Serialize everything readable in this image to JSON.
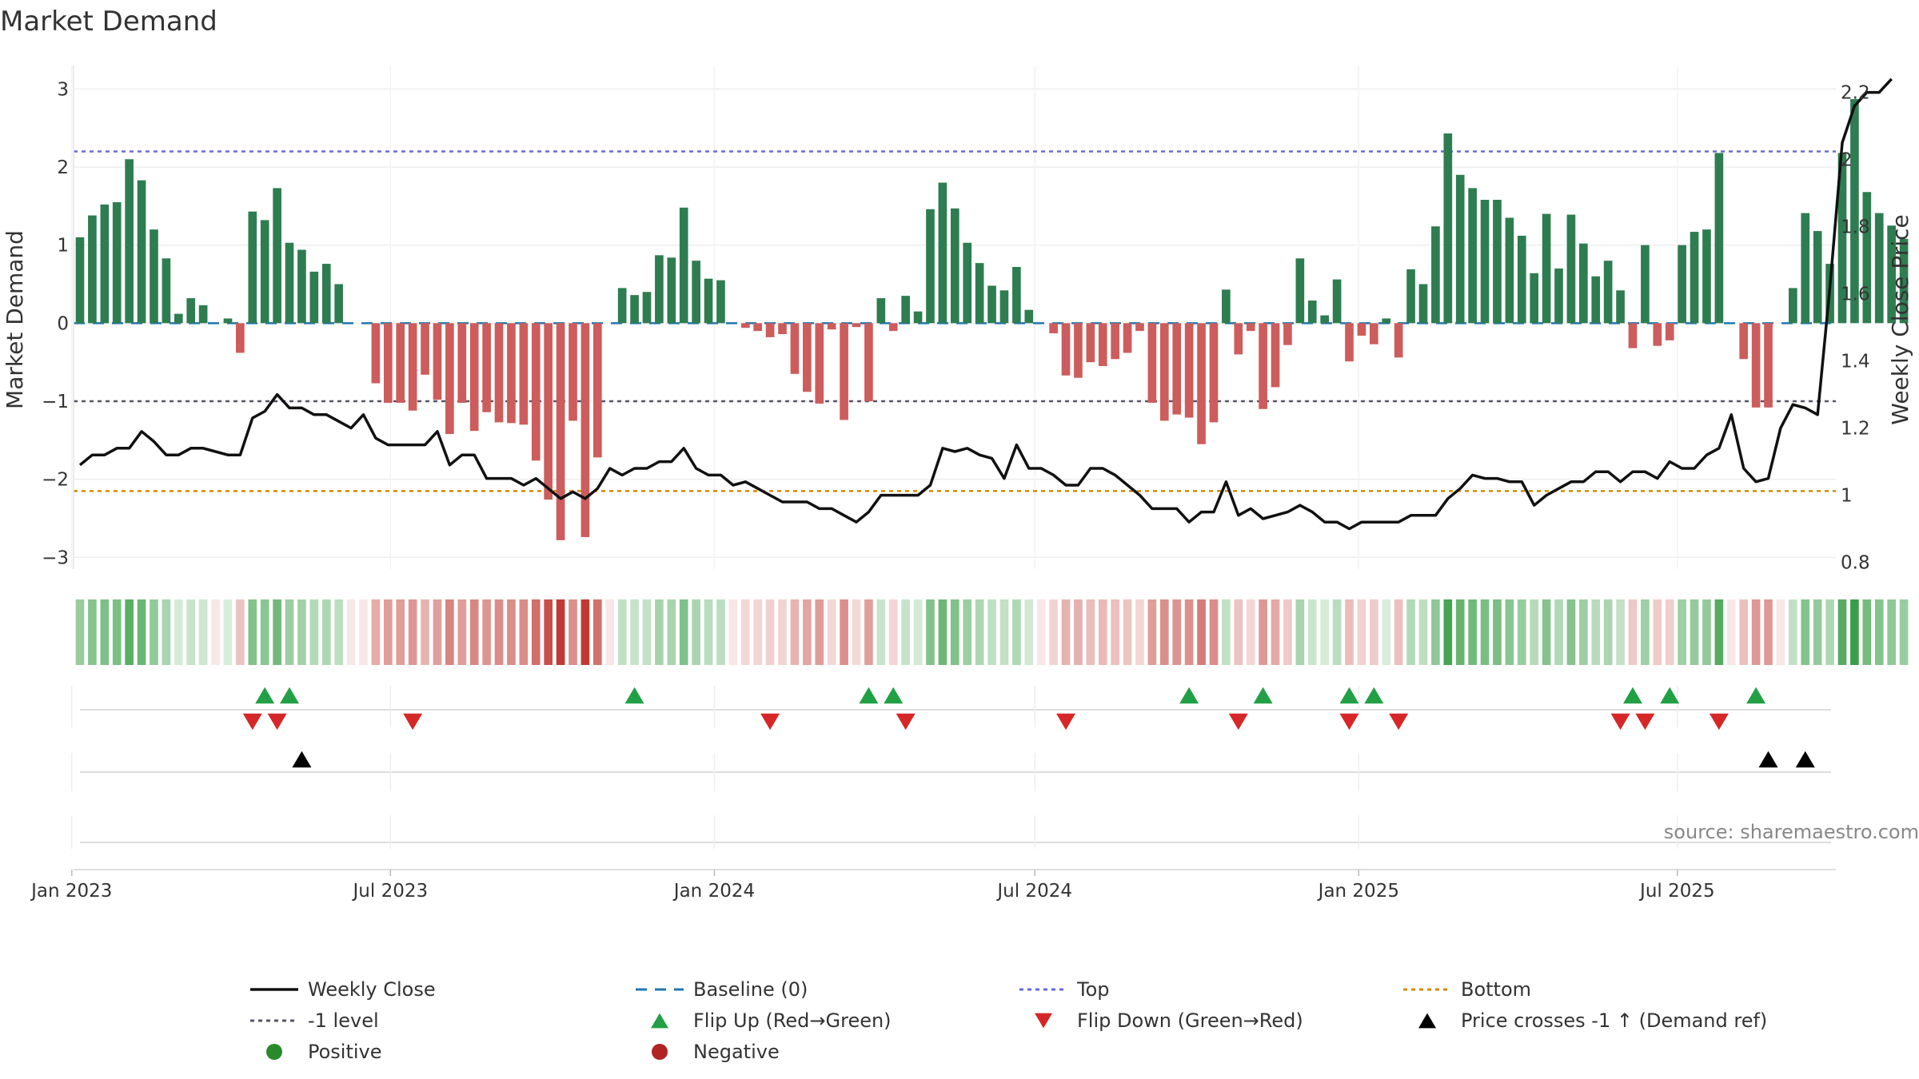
{
  "chart_data": {
    "type": "bar",
    "title": "Market Demand",
    "ylabel": "Market Demand",
    "y2label": "Weekly Close Price",
    "ylim": [
      -3.15,
      3.3
    ],
    "y2lim": [
      0.78,
      2.28
    ],
    "yticks": [
      "3",
      "2",
      "1",
      "0",
      "−1",
      "−2",
      "−3"
    ],
    "y2ticks": [
      "2.2",
      "2",
      "1.8",
      "1.6",
      "1.4",
      "1.2",
      "1",
      "0.8"
    ],
    "xlim": [
      "2023-01-02",
      "2025-09-29"
    ],
    "xticks": [
      {
        "date": "2023-01-01",
        "label": "Jan 2023"
      },
      {
        "date": "2023-07-01",
        "label": "Jul 2023"
      },
      {
        "date": "2024-01-01",
        "label": "Jan 2024"
      },
      {
        "date": "2024-07-01",
        "label": "Jul 2024"
      },
      {
        "date": "2025-01-01",
        "label": "Jan 2025"
      },
      {
        "date": "2025-07-01",
        "label": "Jul 2025"
      }
    ],
    "start_date": "2023-01-02",
    "week_step_days": 7,
    "reference_lines": {
      "top": 2.2,
      "baseline": 0,
      "minus_one": -1,
      "bottom": -2.15
    },
    "demand": [
      1.1,
      1.38,
      1.52,
      1.55,
      2.1,
      1.83,
      1.2,
      0.83,
      0.12,
      0.32,
      0.23,
      0,
      0.06,
      -0.38,
      1.43,
      1.32,
      1.73,
      1.03,
      0.94,
      0.66,
      0.76,
      0.5,
      0,
      0,
      -0.77,
      -1.02,
      -1.02,
      -1.12,
      -0.66,
      -0.98,
      -1.42,
      -1.02,
      -1.38,
      -1.14,
      -1.27,
      -1.28,
      -1.3,
      -1.76,
      -2.26,
      -2.78,
      -1.25,
      -2.74,
      -1.72,
      0,
      0.45,
      0.36,
      0.4,
      0.87,
      0.84,
      1.48,
      0.8,
      0.57,
      0.55,
      0,
      -0.06,
      -0.1,
      -0.18,
      -0.14,
      -0.65,
      -0.88,
      -1.03,
      -0.08,
      -1.24,
      -0.05,
      -1.0,
      0.32,
      -0.1,
      0.35,
      0.15,
      1.46,
      1.8,
      1.47,
      1.03,
      0.77,
      0.48,
      0.42,
      0.72,
      0.17,
      0,
      -0.13,
      -0.67,
      -0.7,
      -0.5,
      -0.55,
      -0.46,
      -0.38,
      -0.1,
      -1.02,
      -1.25,
      -1.17,
      -1.21,
      -1.55,
      -1.27,
      0.43,
      -0.4,
      -0.1,
      -1.1,
      -0.82,
      -0.28,
      0.83,
      0.29,
      0.1,
      0.56,
      -0.49,
      -0.16,
      -0.27,
      0.06,
      -0.44,
      0.69,
      0.5,
      1.24,
      2.43,
      1.9,
      1.73,
      1.58,
      1.58,
      1.35,
      1.12,
      0.64,
      1.4,
      0.7,
      1.39,
      1.02,
      0.6,
      0.8,
      0.42,
      -0.32,
      1.0,
      -0.29,
      -0.22,
      1.0,
      1.17,
      1.2,
      2.18,
      0,
      -0.46,
      -1.08,
      -1.08,
      0,
      0.45,
      1.41,
      1.18,
      0.76,
      2.18,
      2.87,
      1.68,
      1.41,
      1.25,
      1.08
    ],
    "weekly_close": [
      1.09,
      1.12,
      1.12,
      1.14,
      1.14,
      1.19,
      1.16,
      1.12,
      1.12,
      1.14,
      1.14,
      1.13,
      1.12,
      1.12,
      1.23,
      1.25,
      1.3,
      1.26,
      1.26,
      1.24,
      1.24,
      1.22,
      1.2,
      1.24,
      1.17,
      1.15,
      1.15,
      1.15,
      1.15,
      1.19,
      1.09,
      1.12,
      1.12,
      1.05,
      1.05,
      1.05,
      1.03,
      1.05,
      1.02,
      0.99,
      1.01,
      0.99,
      1.02,
      1.08,
      1.06,
      1.08,
      1.08,
      1.1,
      1.1,
      1.14,
      1.08,
      1.06,
      1.06,
      1.03,
      1.04,
      1.02,
      1.0,
      0.98,
      0.98,
      0.98,
      0.96,
      0.96,
      0.94,
      0.92,
      0.95,
      1.0,
      1.0,
      1.0,
      1.0,
      1.03,
      1.14,
      1.13,
      1.14,
      1.12,
      1.11,
      1.05,
      1.15,
      1.08,
      1.08,
      1.06,
      1.03,
      1.03,
      1.08,
      1.08,
      1.06,
      1.03,
      1.0,
      0.96,
      0.96,
      0.96,
      0.92,
      0.95,
      0.95,
      1.04,
      0.94,
      0.96,
      0.93,
      0.94,
      0.95,
      0.97,
      0.95,
      0.92,
      0.92,
      0.9,
      0.92,
      0.92,
      0.92,
      0.92,
      0.94,
      0.94,
      0.94,
      0.99,
      1.02,
      1.06,
      1.05,
      1.05,
      1.04,
      1.04,
      0.97,
      1.0,
      1.02,
      1.04,
      1.04,
      1.07,
      1.07,
      1.04,
      1.07,
      1.07,
      1.05,
      1.1,
      1.08,
      1.08,
      1.12,
      1.14,
      1.24,
      1.08,
      1.04,
      1.05,
      1.2,
      1.27,
      1.26,
      1.24,
      1.62,
      2.05,
      2.16,
      2.2,
      2.2,
      2.24
    ],
    "flip_up_weeks": [
      15,
      17,
      45,
      64,
      66,
      90,
      96,
      103,
      105,
      126,
      129,
      136
    ],
    "flip_down_weeks": [
      14,
      16,
      27,
      56,
      67,
      80,
      94,
      103,
      107,
      125,
      127,
      133
    ],
    "price_cross_weeks": [
      18,
      137,
      140
    ],
    "legend": [
      {
        "label": "Weekly Close",
        "marker": "solid-line",
        "color": "#111111"
      },
      {
        "label": "Baseline (0)",
        "marker": "dashed-line",
        "color": "#1f77b4"
      },
      {
        "label": "Top",
        "marker": "dotted-line",
        "color": "#6a6ad6"
      },
      {
        "label": "Bottom",
        "marker": "dotted-line",
        "color": "#d48a00"
      },
      {
        "label": "-1 level",
        "marker": "dotted-line",
        "color": "#555566"
      },
      {
        "label": "Flip Up (Red→Green)",
        "marker": "triangle-up",
        "color": "#22a045"
      },
      {
        "label": "Flip Down (Green→Red)",
        "marker": "triangle-down",
        "color": "#d62728"
      },
      {
        "label": "Price crosses -1 ↑ (Demand ref)",
        "marker": "triangle-up",
        "color": "#000000"
      },
      {
        "label": "Positive",
        "marker": "circle",
        "color": "#2a8a2a"
      },
      {
        "label": "Negative",
        "marker": "circle",
        "color": "#b22222"
      }
    ]
  },
  "colors": {
    "positive_bar": "#2e7d50",
    "negative_bar": "#cd5c5c",
    "heat_positive": "#3a9e48",
    "heat_negative": "#c03a33",
    "price_line": "#111111",
    "top_line": "#6a6ad6",
    "bottom_line": "#d48a00",
    "baseline": "#1f77b4",
    "minus_one_line": "#555566",
    "flip_up": "#22a045",
    "flip_down": "#d62728",
    "price_cross": "#000000"
  },
  "source_text": "source: sharemaestro.com"
}
